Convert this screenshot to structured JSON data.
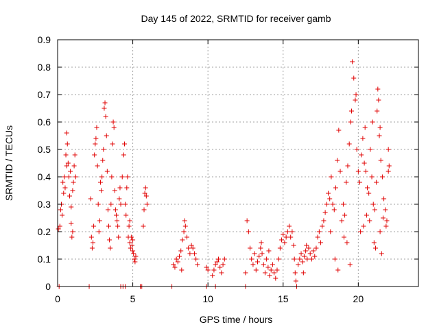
{
  "colors": {
    "series": "#e00000",
    "grid": "#a0a0a0",
    "axis": "#000000"
  },
  "chart_data": {
    "type": "scatter",
    "title": "Day 145 of 2022, SRMTID for receiver gamb",
    "xlabel": "GPS time / hours",
    "ylabel": "SRMTID / TECUs",
    "xlim": [
      0,
      24
    ],
    "ylim": [
      0,
      0.9
    ],
    "xticks": [
      0,
      5,
      10,
      15,
      20
    ],
    "xtick_labels": [
      "0",
      "5",
      "10",
      "15",
      "20"
    ],
    "yticks": [
      0,
      0.1,
      0.2,
      0.3,
      0.4,
      0.5,
      0.6,
      0.7,
      0.8,
      0.9
    ],
    "ytick_labels": [
      "0",
      "0.1",
      "0.2",
      "0.3",
      "0.4",
      "0.5",
      "0.6",
      "0.7",
      "0.8",
      "0.9"
    ],
    "grid": true,
    "marker": "+",
    "series": [
      {
        "name": "SRMTID",
        "points": [
          [
            0.05,
            0.21
          ],
          [
            0.15,
            0.22
          ],
          [
            0.25,
            0.3
          ],
          [
            0.3,
            0.26
          ],
          [
            0.35,
            0.38
          ],
          [
            0.4,
            0.34
          ],
          [
            0.45,
            0.4
          ],
          [
            0.5,
            0.36
          ],
          [
            0.55,
            0.48
          ],
          [
            0.6,
            0.56
          ],
          [
            0.65,
            0.52
          ],
          [
            0.7,
            0.45
          ],
          [
            0.75,
            0.4
          ],
          [
            0.8,
            0.33
          ],
          [
            0.85,
            0.42
          ],
          [
            0.9,
            0.29
          ],
          [
            0.95,
            0.18
          ],
          [
            1.0,
            0.35
          ],
          [
            1.05,
            0.38
          ],
          [
            1.1,
            0.44
          ],
          [
            1.15,
            0.48
          ],
          [
            1.2,
            0.4
          ],
          [
            0.2,
            0.28
          ],
          [
            0.6,
            0.44
          ],
          [
            0.9,
            0.23
          ],
          [
            1.0,
            0.2
          ],
          [
            2.2,
            0.32
          ],
          [
            2.25,
            0.18
          ],
          [
            2.3,
            0.14
          ],
          [
            2.35,
            0.16
          ],
          [
            2.4,
            0.22
          ],
          [
            2.45,
            0.48
          ],
          [
            2.5,
            0.52
          ],
          [
            2.55,
            0.54
          ],
          [
            2.6,
            0.58
          ],
          [
            2.65,
            0.44
          ],
          [
            2.7,
            0.3
          ],
          [
            2.75,
            0.2
          ],
          [
            2.8,
            0.24
          ],
          [
            2.85,
            0.38
          ],
          [
            2.9,
            0.35
          ],
          [
            2.95,
            0.4
          ],
          [
            3.0,
            0.46
          ],
          [
            3.05,
            0.5
          ],
          [
            3.1,
            0.65
          ],
          [
            3.15,
            0.67
          ],
          [
            3.2,
            0.62
          ],
          [
            3.25,
            0.55
          ],
          [
            3.3,
            0.42
          ],
          [
            3.35,
            0.28
          ],
          [
            3.4,
            0.22
          ],
          [
            3.45,
            0.17
          ],
          [
            3.5,
            0.14
          ],
          [
            3.55,
            0.3
          ],
          [
            3.6,
            0.4
          ],
          [
            3.65,
            0.52
          ],
          [
            3.7,
            0.6
          ],
          [
            3.75,
            0.58
          ],
          [
            3.8,
            0.35
          ],
          [
            3.85,
            0.28
          ],
          [
            3.9,
            0.26
          ],
          [
            3.95,
            0.24
          ],
          [
            4.0,
            0.22
          ],
          [
            4.05,
            0.18
          ],
          [
            4.1,
            0.32
          ],
          [
            4.15,
            0.36
          ],
          [
            4.2,
            0.3
          ],
          [
            4.3,
            0.4
          ],
          [
            4.4,
            0.48
          ],
          [
            4.45,
            0.52
          ],
          [
            4.5,
            0.3
          ],
          [
            4.55,
            0.26
          ],
          [
            4.6,
            0.36
          ],
          [
            4.65,
            0.4
          ],
          [
            4.7,
            0.18
          ],
          [
            4.75,
            0.22
          ],
          [
            4.8,
            0.16
          ],
          [
            4.85,
            0.14
          ],
          [
            4.9,
            0.18
          ],
          [
            4.95,
            0.15
          ],
          [
            5.0,
            0.13
          ],
          [
            5.05,
            0.12
          ],
          [
            5.1,
            0.1
          ],
          [
            5.15,
            0.09
          ],
          [
            5.2,
            0.11
          ],
          [
            4.8,
            0.24
          ],
          [
            5.0,
            0.17
          ],
          [
            5.7,
            0.22
          ],
          [
            5.75,
            0.28
          ],
          [
            5.8,
            0.34
          ],
          [
            5.85,
            0.36
          ],
          [
            5.9,
            0.33
          ],
          [
            5.95,
            0.3
          ],
          [
            7.7,
            0.08
          ],
          [
            7.8,
            0.07
          ],
          [
            7.9,
            0.1
          ],
          [
            8.0,
            0.09
          ],
          [
            8.1,
            0.11
          ],
          [
            8.2,
            0.13
          ],
          [
            8.3,
            0.17
          ],
          [
            8.4,
            0.2
          ],
          [
            8.5,
            0.22
          ],
          [
            8.6,
            0.18
          ],
          [
            8.7,
            0.14
          ],
          [
            8.8,
            0.12
          ],
          [
            8.9,
            0.15
          ],
          [
            9.0,
            0.14
          ],
          [
            9.1,
            0.12
          ],
          [
            9.2,
            0.1
          ],
          [
            9.3,
            0.08
          ],
          [
            8.45,
            0.24
          ],
          [
            8.25,
            0.06
          ],
          [
            9.9,
            0.07
          ],
          [
            10.0,
            0.06
          ],
          [
            10.3,
            0.04
          ],
          [
            10.4,
            0.06
          ],
          [
            10.5,
            0.08
          ],
          [
            10.6,
            0.09
          ],
          [
            10.7,
            0.1
          ],
          [
            10.8,
            0.07
          ],
          [
            10.9,
            0.05
          ],
          [
            11.0,
            0.08
          ],
          [
            11.1,
            0.1
          ],
          [
            12.5,
            0.05
          ],
          [
            12.6,
            0.24
          ],
          [
            12.7,
            0.2
          ],
          [
            12.8,
            0.14
          ],
          [
            12.9,
            0.1
          ],
          [
            13.0,
            0.08
          ],
          [
            13.1,
            0.12
          ],
          [
            13.2,
            0.06
          ],
          [
            13.3,
            0.09
          ],
          [
            13.4,
            0.11
          ],
          [
            13.5,
            0.14
          ],
          [
            13.6,
            0.12
          ],
          [
            13.7,
            0.08
          ],
          [
            13.8,
            0.05
          ],
          [
            13.9,
            0.1
          ],
          [
            14.0,
            0.07
          ],
          [
            14.1,
            0.04
          ],
          [
            14.2,
            0.06
          ],
          [
            14.3,
            0.08
          ],
          [
            14.4,
            0.05
          ],
          [
            14.5,
            0.03
          ],
          [
            14.6,
            0.06
          ],
          [
            14.7,
            0.1
          ],
          [
            14.8,
            0.14
          ],
          [
            14.9,
            0.17
          ],
          [
            15.0,
            0.19
          ],
          [
            15.1,
            0.16
          ],
          [
            15.2,
            0.18
          ],
          [
            15.3,
            0.2
          ],
          [
            15.4,
            0.22
          ],
          [
            15.5,
            0.18
          ],
          [
            15.6,
            0.2
          ],
          [
            15.7,
            0.15
          ],
          [
            15.75,
            0.1
          ],
          [
            15.8,
            0.05
          ],
          [
            15.85,
            0.02
          ],
          [
            13.55,
            0.16
          ],
          [
            14.05,
            0.13
          ],
          [
            16.0,
            0.08
          ],
          [
            16.1,
            0.1
          ],
          [
            16.2,
            0.12
          ],
          [
            16.3,
            0.09
          ],
          [
            16.4,
            0.11
          ],
          [
            16.5,
            0.13
          ],
          [
            16.6,
            0.1
          ],
          [
            16.7,
            0.14
          ],
          [
            16.8,
            0.12
          ],
          [
            16.9,
            0.1
          ],
          [
            17.0,
            0.13
          ],
          [
            17.1,
            0.11
          ],
          [
            17.2,
            0.14
          ],
          [
            17.3,
            0.18
          ],
          [
            17.4,
            0.2
          ],
          [
            17.5,
            0.16
          ],
          [
            17.6,
            0.22
          ],
          [
            17.7,
            0.24
          ],
          [
            17.8,
            0.27
          ],
          [
            17.9,
            0.3
          ],
          [
            16.35,
            0.05
          ],
          [
            16.55,
            0.15
          ],
          [
            18.0,
            0.34
          ],
          [
            18.1,
            0.32
          ],
          [
            18.2,
            0.4
          ],
          [
            18.3,
            0.3
          ],
          [
            18.4,
            0.28
          ],
          [
            18.5,
            0.36
          ],
          [
            18.6,
            0.46
          ],
          [
            18.7,
            0.57
          ],
          [
            18.8,
            0.42
          ],
          [
            18.9,
            0.24
          ],
          [
            19.0,
            0.3
          ],
          [
            19.1,
            0.26
          ],
          [
            19.2,
            0.38
          ],
          [
            19.3,
            0.44
          ],
          [
            19.4,
            0.52
          ],
          [
            19.5,
            0.6
          ],
          [
            19.6,
            0.82
          ],
          [
            19.7,
            0.76
          ],
          [
            19.8,
            0.68
          ],
          [
            19.9,
            0.5
          ],
          [
            20.0,
            0.42
          ],
          [
            20.1,
            0.38
          ],
          [
            20.2,
            0.48
          ],
          [
            20.3,
            0.54
          ],
          [
            20.4,
            0.45
          ],
          [
            20.5,
            0.42
          ],
          [
            20.6,
            0.36
          ],
          [
            20.7,
            0.34
          ],
          [
            20.8,
            0.5
          ],
          [
            20.9,
            0.4
          ],
          [
            21.0,
            0.3
          ],
          [
            21.1,
            0.28
          ],
          [
            21.2,
            0.38
          ],
          [
            21.25,
            0.64
          ],
          [
            21.3,
            0.72
          ],
          [
            21.35,
            0.68
          ],
          [
            21.4,
            0.55
          ],
          [
            21.5,
            0.46
          ],
          [
            21.6,
            0.4
          ],
          [
            21.7,
            0.32
          ],
          [
            21.8,
            0.28
          ],
          [
            21.9,
            0.24
          ],
          [
            22.0,
            0.42
          ],
          [
            22.05,
            0.44
          ],
          [
            18.15,
            0.2
          ],
          [
            18.45,
            0.1
          ],
          [
            18.65,
            0.06
          ],
          [
            19.05,
            0.18
          ],
          [
            19.25,
            0.16
          ],
          [
            19.45,
            0.08
          ],
          [
            20.15,
            0.2
          ],
          [
            20.35,
            0.22
          ],
          [
            20.55,
            0.26
          ],
          [
            20.75,
            0.24
          ],
          [
            21.05,
            0.16
          ],
          [
            21.15,
            0.14
          ],
          [
            21.45,
            0.2
          ],
          [
            21.55,
            0.12
          ],
          [
            21.65,
            0.25
          ],
          [
            21.85,
            0.22
          ],
          [
            22.0,
            0.5
          ],
          [
            19.85,
            0.7
          ],
          [
            20.45,
            0.58
          ],
          [
            19.55,
            0.64
          ],
          [
            20.95,
            0.6
          ],
          [
            21.45,
            0.58
          ],
          [
            0.1,
            0
          ],
          [
            2.1,
            0
          ],
          [
            4.2,
            0
          ],
          [
            4.35,
            0
          ],
          [
            4.5,
            0
          ],
          [
            5.5,
            0
          ],
          [
            5.6,
            0
          ],
          [
            7.6,
            0
          ],
          [
            9.9,
            0
          ],
          [
            10.5,
            0
          ],
          [
            12.5,
            0
          ],
          [
            15.9,
            0
          ]
        ]
      }
    ]
  }
}
